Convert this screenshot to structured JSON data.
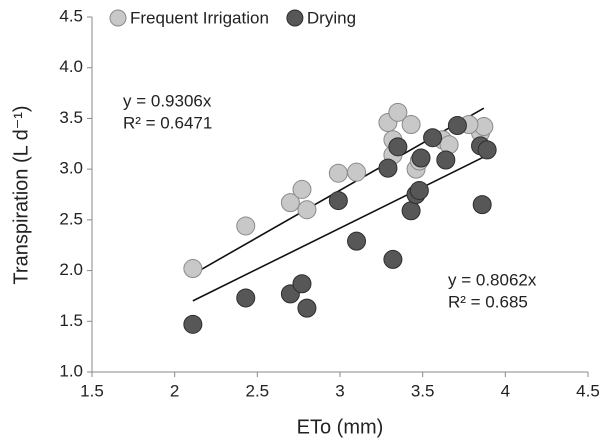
{
  "chart_data": {
    "type": "scatter",
    "xlabel": "ETo (mm)",
    "ylabel": "Transpiration (L d⁻¹)",
    "xlim": [
      1.5,
      4.5
    ],
    "xticks": [
      1.5,
      2,
      2.5,
      3,
      3.5,
      4,
      4.5
    ],
    "ylim": [
      1.0,
      4.5
    ],
    "yticks": [
      {
        "value": 1,
        "label": "1.0"
      },
      1.5,
      {
        "value": 2,
        "label": "2.0"
      },
      2.5,
      {
        "value": 3,
        "label": "3.0"
      },
      3.5,
      {
        "value": 4,
        "label": "4.0"
      },
      4.5
    ],
    "legend": "top",
    "series": [
      {
        "name": "Frequent Irrigation",
        "color": "#c8c8c8",
        "trend_slope": 0.9306,
        "x": [
          2.11,
          2.43,
          2.7,
          2.77,
          2.8,
          2.99,
          3.1,
          3.29,
          3.35,
          3.32,
          3.43,
          3.46,
          3.48,
          3.62,
          3.66,
          3.85,
          3.87,
          3.78,
          3.32
        ],
        "values": [
          2.02,
          2.44,
          2.67,
          2.8,
          2.6,
          2.96,
          2.97,
          3.46,
          3.56,
          3.29,
          3.44,
          3.0,
          3.08,
          3.29,
          3.24,
          3.36,
          3.42,
          3.44,
          3.14
        ]
      },
      {
        "name": "Drying",
        "color": "#575757",
        "trend_slope": 0.8062,
        "x": [
          2.11,
          2.43,
          2.7,
          2.77,
          2.8,
          2.99,
          3.1,
          3.29,
          3.32,
          3.35,
          3.43,
          3.46,
          3.48,
          3.49,
          3.56,
          3.64,
          3.71,
          3.85,
          3.89,
          3.86
        ],
        "values": [
          1.47,
          1.73,
          1.77,
          1.87,
          1.63,
          2.69,
          2.29,
          3.01,
          2.11,
          3.22,
          2.59,
          2.75,
          2.79,
          3.11,
          3.31,
          3.09,
          3.43,
          3.23,
          3.19,
          2.65
        ]
      }
    ],
    "annotations": [
      {
        "text": "y = 0.9306x"
      },
      {
        "text": "R² = 0.6471"
      },
      {
        "text": "y = 0.8062x"
      },
      {
        "text": "R² = 0.685"
      }
    ]
  }
}
